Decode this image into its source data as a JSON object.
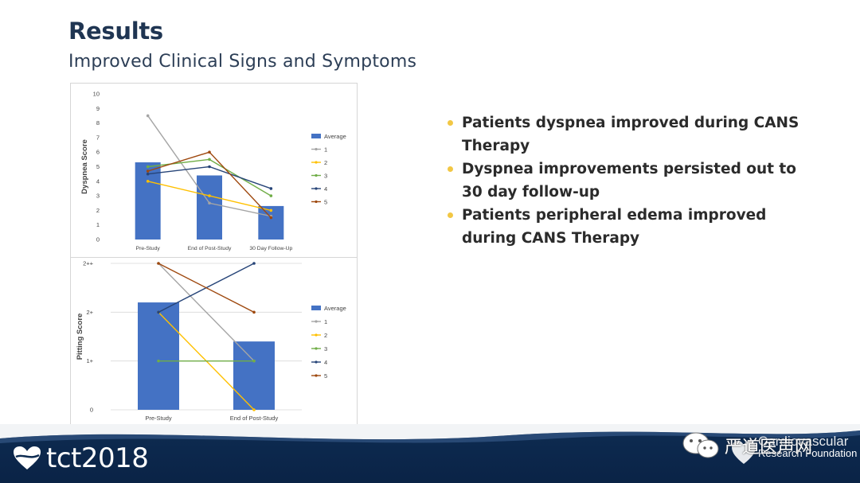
{
  "header": {
    "title": "Results",
    "subtitle": "Improved Clinical Signs and Symptoms"
  },
  "bullets": [
    "Patients dyspnea improved during CANS Therapy",
    "Dyspnea improvements persisted out to 30 day follow-up",
    "Patients peripheral edema improved during CANS Therapy"
  ],
  "colors": {
    "bar": "#4472c4",
    "s1": "#a5a5a5",
    "s2": "#ffc000",
    "s3": "#70ad47",
    "s4": "#264478",
    "s5": "#9e480e",
    "bullet": "#f2c744",
    "footer": "#0e2c52"
  },
  "chart_data": [
    {
      "type": "bar",
      "ylabel": "Dyspnea Score",
      "categories": [
        "Pre-Study",
        "End of Post-Study",
        "30 Day Follow-Up"
      ],
      "ylim": [
        0,
        10
      ],
      "yticks": [
        "0",
        "1",
        "2",
        "3",
        "4",
        "5",
        "6",
        "7",
        "8",
        "9",
        "10"
      ],
      "bar_series": {
        "name": "Average",
        "values": [
          5.3,
          4.4,
          2.3
        ]
      },
      "line_series": [
        {
          "name": "1",
          "values": [
            8.5,
            2.5,
            1.6
          ]
        },
        {
          "name": "2",
          "values": [
            4.0,
            3.0,
            2.0
          ]
        },
        {
          "name": "3",
          "values": [
            5.0,
            5.5,
            3.0
          ]
        },
        {
          "name": "4",
          "values": [
            4.5,
            5.0,
            3.5
          ]
        },
        {
          "name": "5",
          "values": [
            4.7,
            6.0,
            1.5
          ]
        }
      ],
      "legend": "right",
      "grid": false
    },
    {
      "type": "bar",
      "ylabel": "Pitting Score",
      "categories": [
        "Pre-Study",
        "End of Post-Study"
      ],
      "ylim": [
        0,
        3
      ],
      "yticks": [
        "0",
        "1+",
        "2+",
        "2++"
      ],
      "bar_series": {
        "name": "Average",
        "values": [
          2.2,
          1.4
        ]
      },
      "line_series": [
        {
          "name": "1",
          "values": [
            3,
            1
          ]
        },
        {
          "name": "2",
          "values": [
            2,
            0
          ]
        },
        {
          "name": "3",
          "values": [
            1,
            1
          ]
        },
        {
          "name": "4",
          "values": [
            2,
            3
          ]
        },
        {
          "name": "5",
          "values": [
            3,
            2
          ]
        }
      ],
      "legend": "right",
      "grid": true
    }
  ],
  "footer": {
    "brand": "tct2018",
    "org_line1": "Cardiovascular",
    "org_line2": "Research Foundation",
    "watermark": "严道医声网"
  }
}
